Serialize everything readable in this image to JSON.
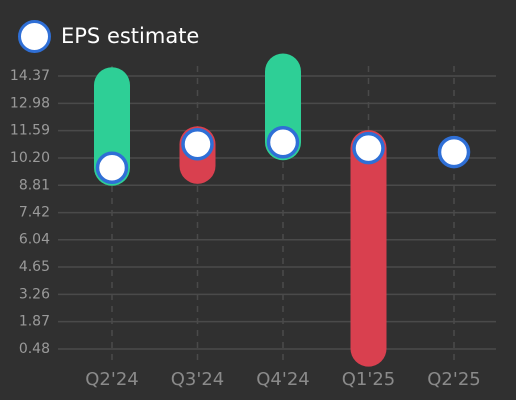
{
  "legend": {
    "label": "EPS estimate"
  },
  "colors": {
    "background": "#303030",
    "grid": "#4a4a4a",
    "beat": "#2ecf96",
    "miss": "#d9404f",
    "marker_fill": "#ffffff",
    "marker_stroke": "#2f6fd6"
  },
  "chart_data": {
    "type": "range-bar",
    "title": "",
    "xlabel": "",
    "ylabel": "",
    "ylim": [
      0.48,
      14.37
    ],
    "y_ticks": [
      "0.48",
      "1.87",
      "3.26",
      "4.65",
      "6.04",
      "7.42",
      "8.81",
      "10.20",
      "11.59",
      "12.98",
      "14.37"
    ],
    "categories": [
      "Q2'24",
      "Q3'24",
      "Q4'24",
      "Q1'25",
      "Q2'25"
    ],
    "series": [
      {
        "name": "EPS estimate",
        "values": [
          9.7,
          10.9,
          11.0,
          10.7,
          10.5
        ]
      },
      {
        "values": [
          13.9,
          9.8,
          14.6,
          0.5,
          null
        ]
      }
    ],
    "grid": true,
    "legend_position": "top-left"
  }
}
